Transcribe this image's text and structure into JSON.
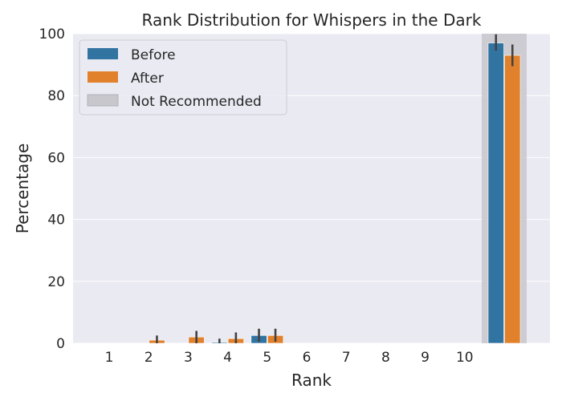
{
  "chart_data": {
    "type": "bar",
    "title": "Rank Distribution for Whispers in the Dark",
    "xlabel": "Rank",
    "ylabel": "Percentage",
    "ylim": [
      0,
      100
    ],
    "yticks": [
      0,
      20,
      40,
      60,
      80,
      100
    ],
    "categories": [
      "1",
      "2",
      "3",
      "4",
      "5",
      "6",
      "7",
      "8",
      "9",
      "10",
      ""
    ],
    "series": [
      {
        "name": "Before",
        "color": "#3274a1",
        "values": [
          0,
          0,
          0,
          0.3,
          2.5,
          0,
          0,
          0,
          0,
          0,
          97.0
        ],
        "err_low": [
          0,
          0,
          0,
          0,
          0.5,
          0,
          0,
          0,
          0,
          0,
          94.5
        ],
        "err_high": [
          0,
          0,
          0,
          1.5,
          4.7,
          0,
          0,
          0,
          0,
          0,
          99.8
        ]
      },
      {
        "name": "After",
        "color": "#e1812c",
        "values": [
          0,
          1.0,
          2.0,
          1.5,
          2.5,
          0,
          0,
          0,
          0,
          0,
          93.0
        ],
        "err_low": [
          0,
          0,
          0,
          0,
          0.5,
          0,
          0,
          0,
          0,
          0,
          89.5
        ],
        "err_high": [
          0,
          2.5,
          4.0,
          3.5,
          4.7,
          0,
          0,
          0,
          0,
          0,
          96.5
        ]
      }
    ],
    "highlight": {
      "name": "Not Recommended",
      "category_index": 10,
      "color": "#c7c7cc"
    },
    "legend_position": "top-left",
    "grid": true,
    "background": "#eaeaf2"
  }
}
